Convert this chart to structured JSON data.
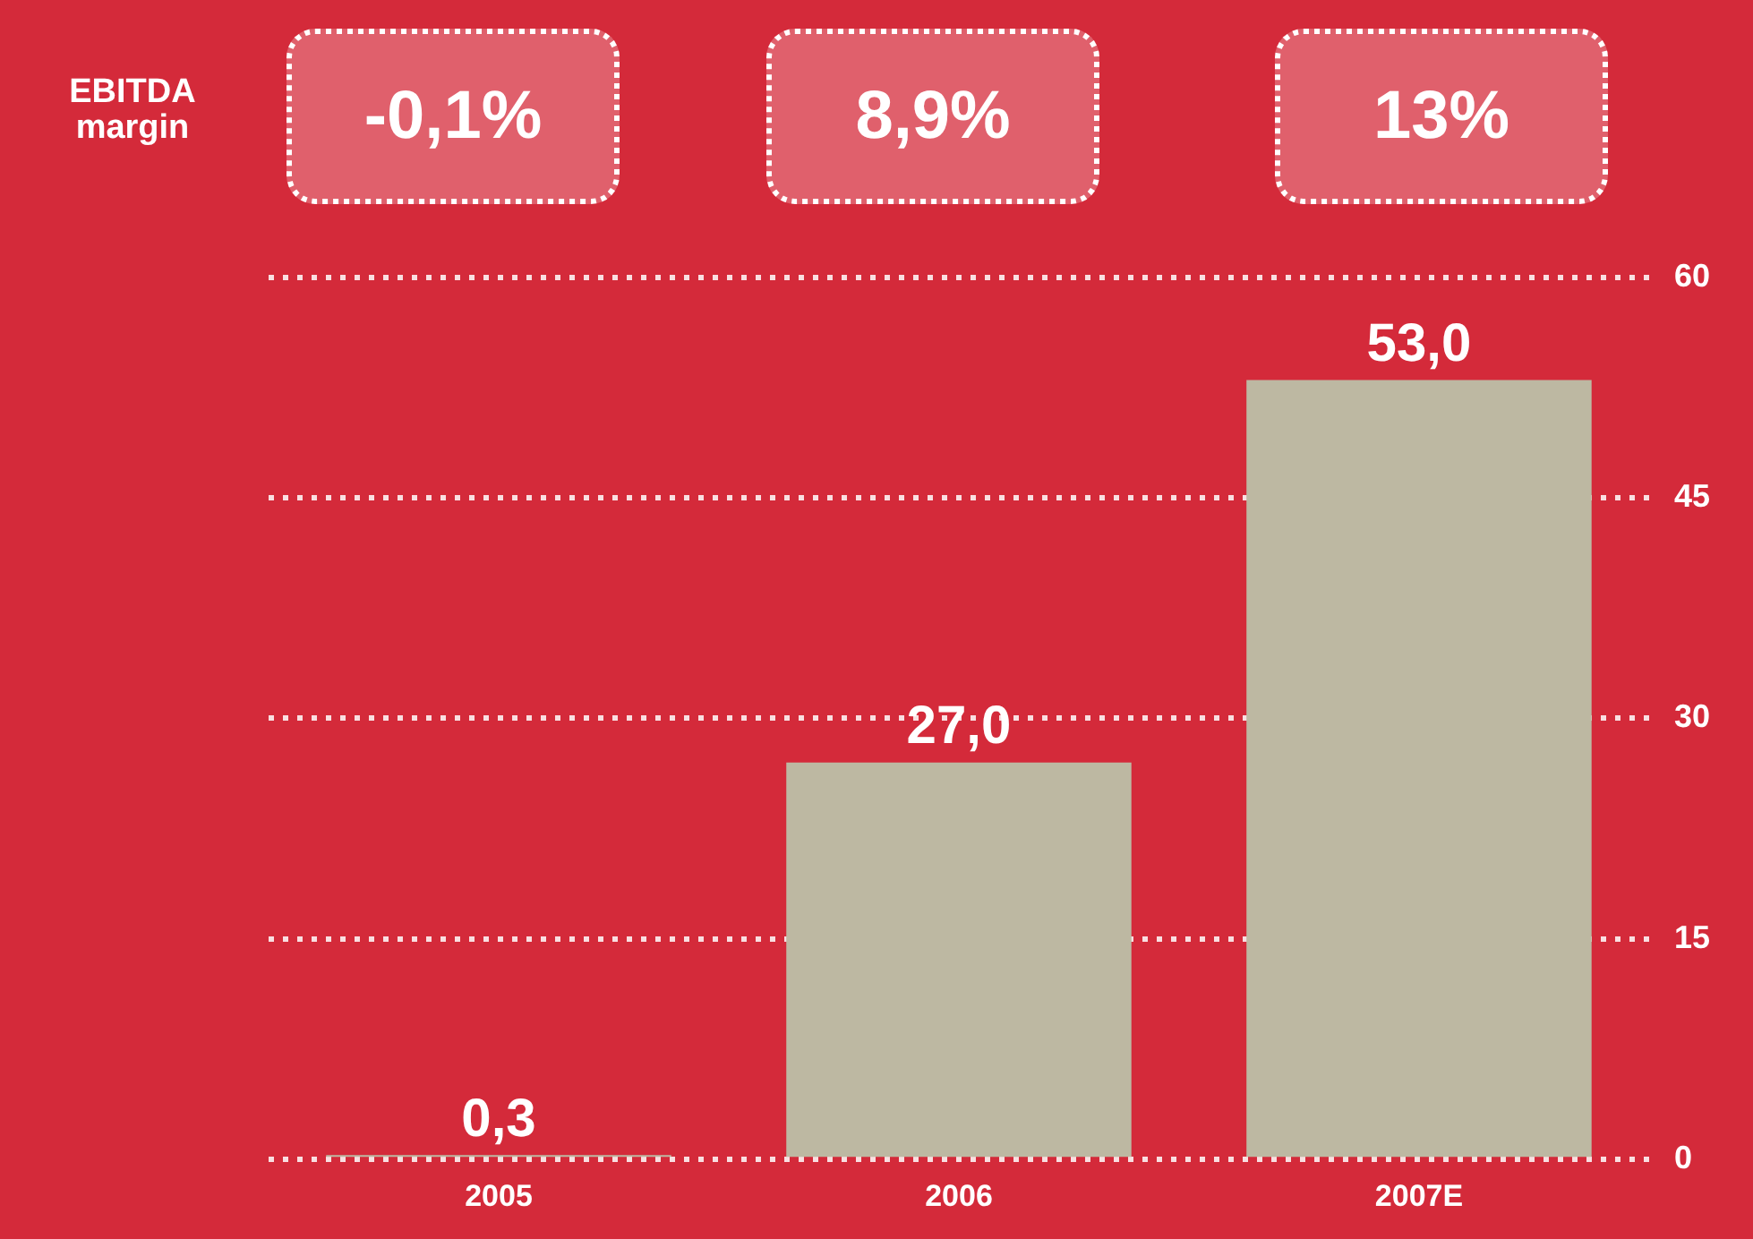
{
  "chart_data": {
    "type": "bar",
    "categories": [
      "2005",
      "2006",
      "2007E"
    ],
    "values": [
      0.3,
      27.0,
      53.0
    ],
    "color": "#bdb8a2",
    "value_labels": [
      "0,3",
      "27,0",
      "53,0"
    ],
    "ylim": [
      0,
      60
    ],
    "yticks": [
      0,
      15,
      30,
      45,
      60
    ],
    "grid": "y",
    "legend": false,
    "annotations": [
      "EBITDA margin",
      "-0,1%",
      "8,9%",
      "13%"
    ]
  }
}
